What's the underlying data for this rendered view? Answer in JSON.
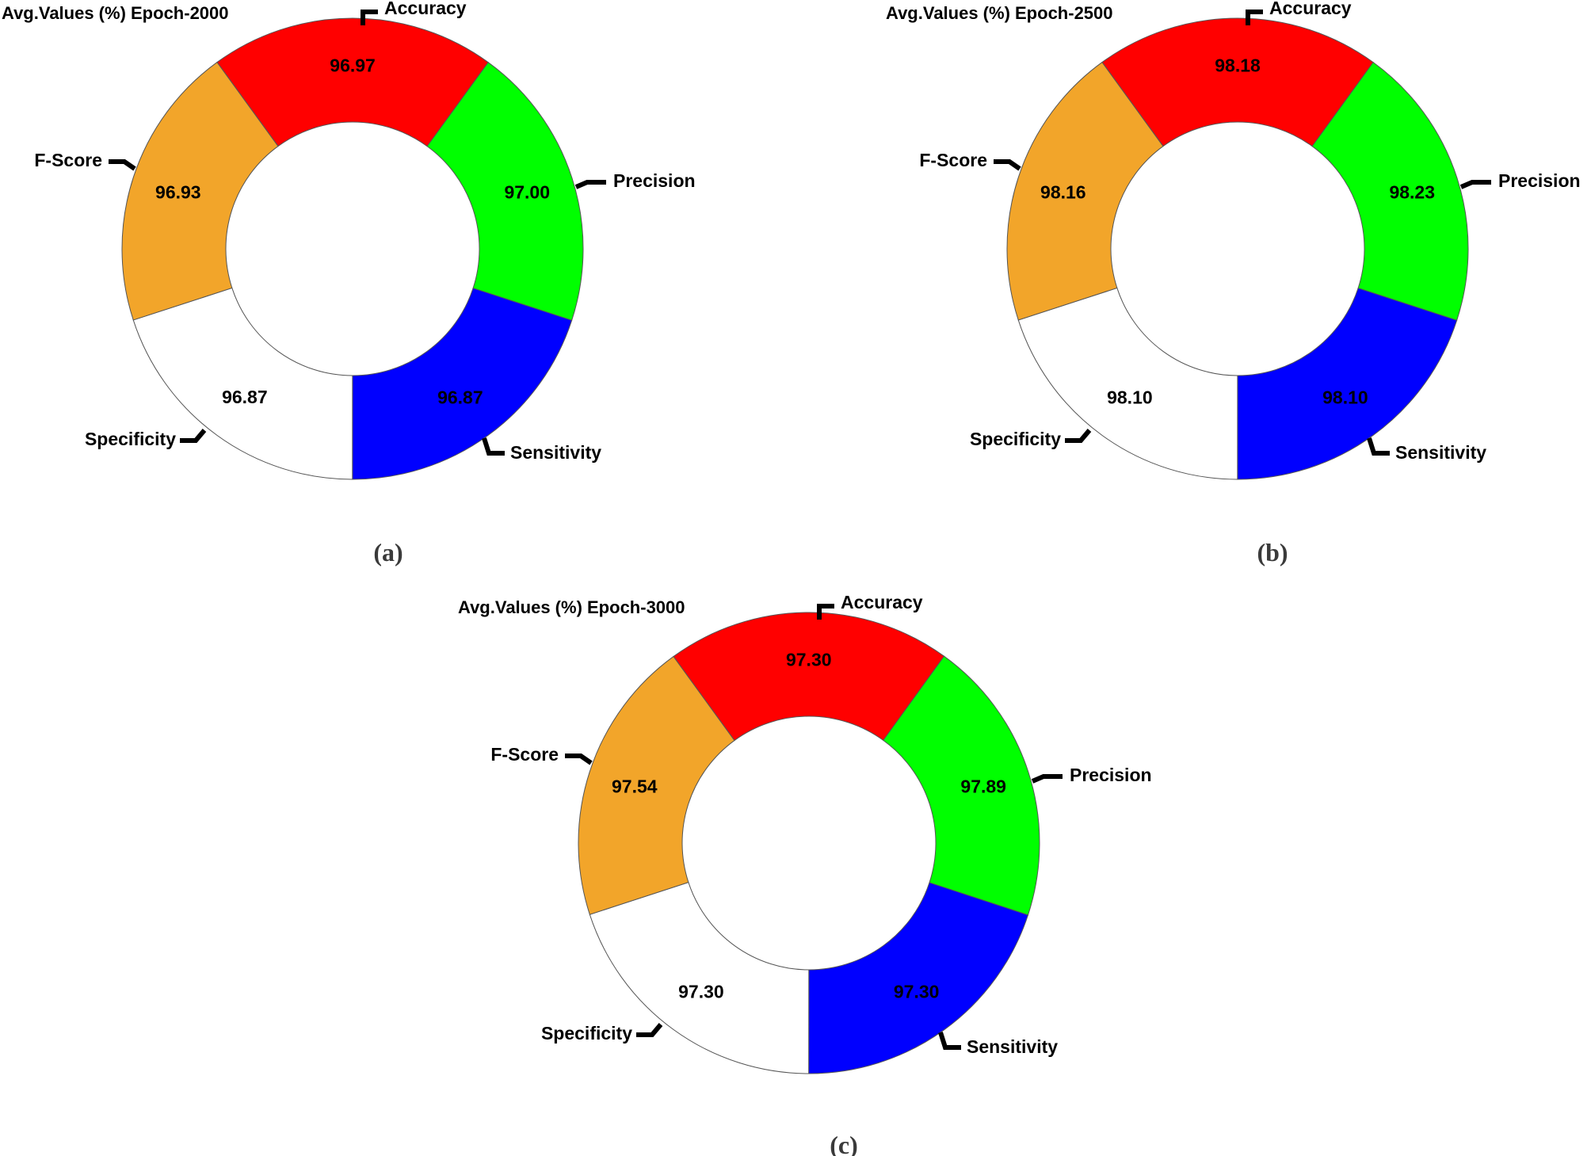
{
  "chart_data": [
    {
      "type": "pie",
      "title": "Avg.Values (%) Epoch-2000",
      "caption": "(a)",
      "categories": [
        "Accuracy",
        "Precision",
        "Sensitivity",
        "Specificity",
        "F-Score"
      ],
      "values": [
        96.97,
        97.0,
        96.87,
        96.87,
        96.93
      ],
      "colors": [
        "#ff0000",
        "#00ff00",
        "#0000ff",
        "#ffffff",
        "#f2a52a"
      ],
      "donut": true
    },
    {
      "type": "pie",
      "title": "Avg.Values (%) Epoch-2500",
      "caption": "(b)",
      "categories": [
        "Accuracy",
        "Precision",
        "Sensitivity",
        "Specificity",
        "F-Score"
      ],
      "values": [
        98.18,
        98.23,
        98.1,
        98.1,
        98.16
      ],
      "colors": [
        "#ff0000",
        "#00ff00",
        "#0000ff",
        "#ffffff",
        "#f2a52a"
      ],
      "donut": true
    },
    {
      "type": "pie",
      "title": "Avg.Values (%) Epoch-3000",
      "caption": "(c)",
      "categories": [
        "Accuracy",
        "Precision",
        "Sensitivity",
        "Specificity",
        "F-Score"
      ],
      "values": [
        97.3,
        97.89,
        97.3,
        97.3,
        97.54
      ],
      "colors": [
        "#ff0000",
        "#00ff00",
        "#0000ff",
        "#ffffff",
        "#f2a52a"
      ],
      "donut": true
    }
  ]
}
